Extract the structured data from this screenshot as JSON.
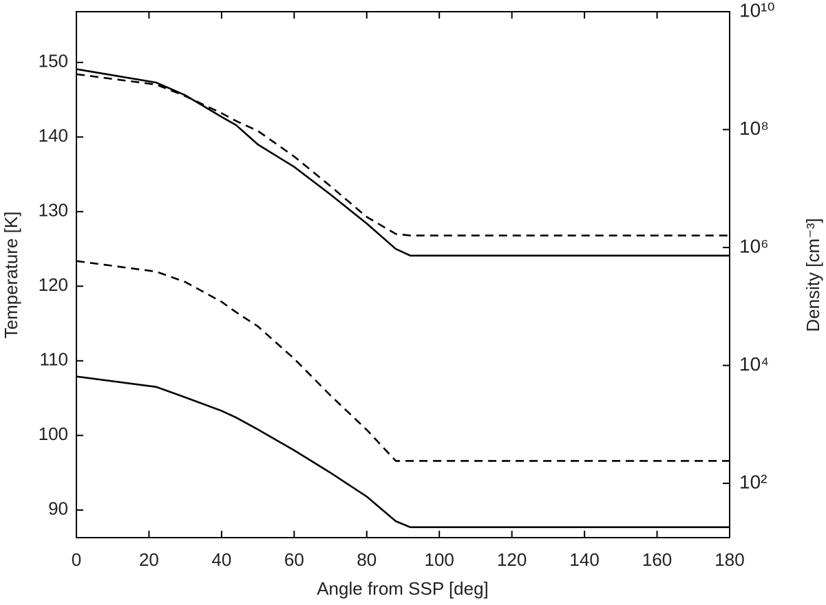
{
  "chart_data": {
    "type": "line",
    "xlabel": "Angle from SSP [deg]",
    "ylabel": "Temperature [K]",
    "y2label": "Density [cm⁻³]",
    "x": [
      0,
      22,
      30,
      40,
      44,
      50,
      60,
      70,
      80,
      88,
      92,
      180
    ],
    "series": [
      {
        "color": "#000000",
        "dash": false,
        "axis": "y",
        "values": [
          149.1,
          147.3,
          145.6,
          142.7,
          141.6,
          139.0,
          136.0,
          132.3,
          128.4,
          125.0,
          124.1,
          124.1
        ]
      },
      {
        "color": "#000000",
        "dash": false,
        "axis": "y",
        "values": [
          107.9,
          106.5,
          105.1,
          103.3,
          102.4,
          100.8,
          98.0,
          95.0,
          91.8,
          88.5,
          87.7,
          87.7
        ]
      },
      {
        "color": "#000000",
        "dash": true,
        "axis": "y2",
        "values": [
          870000000,
          580000000,
          370000000,
          190000000,
          140000000,
          95000000,
          35000000,
          11000000,
          3300000,
          1700000,
          1600000,
          1600000
        ]
      },
      {
        "color": "#000000",
        "dash": true,
        "axis": "y2",
        "values": [
          590000,
          390000,
          260000,
          120000,
          80000,
          46000,
          13000,
          3100,
          810,
          240,
          240,
          240
        ]
      }
    ],
    "xlim": [
      0,
      180
    ],
    "xticks": [
      0,
      20,
      40,
      60,
      80,
      100,
      120,
      140,
      160,
      180
    ],
    "ylim": [
      86.3,
      156.8
    ],
    "yticks": [
      90,
      100,
      110,
      120,
      130,
      140,
      150
    ],
    "y2lim": [
      12,
      10000000000
    ],
    "y2log": true,
    "y2ticks": [
      {
        "value": 100,
        "label": "10²"
      },
      {
        "value": 10000,
        "label": "10⁴"
      },
      {
        "value": 1000000,
        "label": "10⁶"
      },
      {
        "value": 100000000,
        "label": "10⁸"
      },
      {
        "value": 10000000000,
        "label": "10¹⁰"
      }
    ],
    "grid": false
  }
}
